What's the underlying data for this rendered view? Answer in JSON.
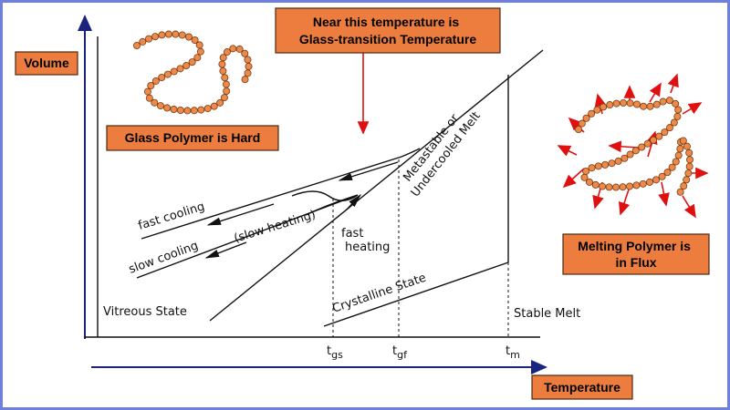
{
  "callouts": {
    "volume": "Volume",
    "temperature": "Temperature",
    "glass_transition": [
      "Near this temperature is",
      "Glass-transition Temperature"
    ],
    "glass_polymer": "Glass Polymer is Hard",
    "melting_polymer": [
      "Melting Polymer is",
      "in Flux"
    ]
  },
  "diagram": {
    "labels": {
      "fast_cooling": "fast cooling",
      "slow_cooling": "slow cooling",
      "slow_heating": "(slow heating)",
      "fast_heating": [
        "fast",
        "heating"
      ],
      "melt": [
        "Metastable or",
        "Undercooled Melt"
      ],
      "crystalline": "Crystalline State",
      "vitreous": "Vitreous State",
      "stable_melt": "Stable Melt"
    },
    "ticks": [
      {
        "base": "t",
        "sub": "gs"
      },
      {
        "base": "t",
        "sub": "gf"
      },
      {
        "base": "t",
        "sub": "m"
      }
    ]
  }
}
